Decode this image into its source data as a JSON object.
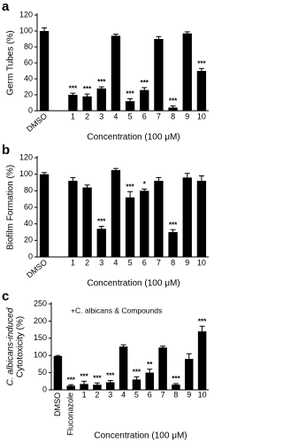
{
  "chart_data": [
    {
      "type": "bar",
      "panel_label": "a",
      "ylabel": [
        "Germ Tubes (%)"
      ],
      "xlabel": "Concentration (100 μM)",
      "categories": [
        "DMSO",
        null,
        "1",
        "2",
        "3",
        "4",
        "5",
        "6",
        "7",
        "8",
        "9",
        "10"
      ],
      "values": [
        100,
        null,
        20,
        18,
        28,
        94,
        12,
        26,
        90,
        4,
        97,
        50
      ],
      "errors": [
        4,
        null,
        2,
        3,
        2,
        2,
        3,
        3,
        3,
        2,
        2,
        3
      ],
      "significance": [
        null,
        null,
        "***",
        "***",
        "***",
        null,
        "***",
        "***",
        null,
        "***",
        null,
        "***"
      ],
      "color": "#000000",
      "ylim": [
        0,
        120
      ],
      "yticks": [
        0,
        20,
        40,
        60,
        80,
        100,
        120
      ]
    },
    {
      "type": "bar",
      "panel_label": "b",
      "ylabel": [
        "Biofilm Formation (%)"
      ],
      "xlabel": "Concentration (100 μM)",
      "categories": [
        "DMSO",
        null,
        "1",
        "2",
        "3",
        "4",
        "5",
        "6",
        "7",
        "8",
        "9",
        "10"
      ],
      "values": [
        100,
        null,
        92,
        84,
        34,
        105,
        72,
        80,
        92,
        30,
        96,
        92
      ],
      "errors": [
        2,
        null,
        4,
        3,
        3,
        2,
        7,
        2,
        4,
        3,
        5,
        6
      ],
      "significance": [
        null,
        null,
        null,
        null,
        "***",
        null,
        "***",
        "*",
        null,
        "***",
        null,
        null
      ],
      "color": "#000000",
      "ylim": [
        0,
        120
      ],
      "yticks": [
        0,
        20,
        40,
        60,
        80,
        100,
        120
      ]
    },
    {
      "type": "bar",
      "panel_label": "c",
      "ylabel": [
        "C. albicans-induced",
        "Cytotoxicity (%)"
      ],
      "xlabel": "Concentration (100 μM)",
      "annotation": "+C. albicans & Compounds",
      "categories": [
        "DMSO",
        "Fluconazole",
        "1",
        "2",
        "3",
        "4",
        "5",
        "6",
        "7",
        "8",
        "9",
        "10"
      ],
      "values": [
        98,
        12,
        17,
        15,
        22,
        126,
        30,
        50,
        123,
        15,
        90,
        170
      ],
      "errors": [
        2,
        3,
        8,
        5,
        5,
        5,
        8,
        10,
        4,
        3,
        15,
        15
      ],
      "significance": [
        null,
        "***",
        "***",
        "***",
        "***",
        null,
        "***",
        "**",
        null,
        "***",
        null,
        "***"
      ],
      "color": "#000000",
      "ylim": [
        0,
        250
      ],
      "yticks": [
        0,
        50,
        100,
        150,
        200,
        250
      ]
    }
  ]
}
